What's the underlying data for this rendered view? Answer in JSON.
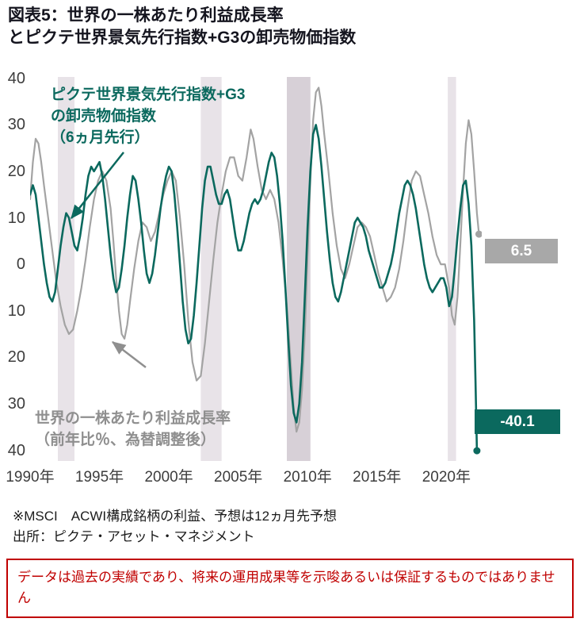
{
  "title": {
    "line1": "図表5：世界の一株あたり利益成長率",
    "line2": "とピクテ世界景気先行指数+G3の卸売物価指数"
  },
  "chart_data": {
    "type": "line",
    "x_range": [
      1990,
      2022.55
    ],
    "y_range": [
      -42.3,
      40.3
    ],
    "grid": false,
    "legend_position": "annotations-inside-plot",
    "x_ticks": [
      {
        "value": 1990,
        "label": "1990年"
      },
      {
        "value": 1995,
        "label": "1995年"
      },
      {
        "value": 2000,
        "label": "2000年"
      },
      {
        "value": 2005,
        "label": "2005年"
      },
      {
        "value": 2010,
        "label": "2010年"
      },
      {
        "value": 2015,
        "label": "2015年"
      },
      {
        "value": 2020,
        "label": "2020年"
      }
    ],
    "y_ticks": [
      {
        "value": 40,
        "label": "40"
      },
      {
        "value": 30,
        "label": "30"
      },
      {
        "value": 20,
        "label": "20"
      },
      {
        "value": 10,
        "label": "10"
      },
      {
        "value": 0,
        "label": "0"
      },
      {
        "value": -10,
        "label": "10"
      },
      {
        "value": -20,
        "label": "20"
      },
      {
        "value": -30,
        "label": "30"
      },
      {
        "value": -40,
        "label": "40"
      }
    ],
    "recession_bands": [
      {
        "from": 1992.0,
        "to": 1993.2,
        "shade": "normal"
      },
      {
        "from": 2002.3,
        "to": 2003.8,
        "shade": "normal"
      },
      {
        "from": 2008.5,
        "to": 2010.2,
        "shade": "dark"
      },
      {
        "from": 2020.1,
        "to": 2020.7,
        "shade": "normal"
      }
    ],
    "series": [
      {
        "name": "世界の一株あたり利益成長率（前年比％、為替調整後）",
        "color": "#a3a3a3",
        "width": 2.2,
        "last_value": 6.5,
        "last_label": "6.5",
        "points": [
          [
            1990.0,
            14
          ],
          [
            1990.2,
            22
          ],
          [
            1990.4,
            27
          ],
          [
            1990.6,
            26
          ],
          [
            1990.8,
            22
          ],
          [
            1991.0,
            17
          ],
          [
            1991.3,
            10
          ],
          [
            1991.6,
            3
          ],
          [
            1991.9,
            -4
          ],
          [
            1992.2,
            -9
          ],
          [
            1992.5,
            -13
          ],
          [
            1992.8,
            -15
          ],
          [
            1993.1,
            -14
          ],
          [
            1993.4,
            -10
          ],
          [
            1993.7,
            -5
          ],
          [
            1994.0,
            1
          ],
          [
            1994.3,
            8
          ],
          [
            1994.6,
            14
          ],
          [
            1994.9,
            18
          ],
          [
            1995.2,
            20
          ],
          [
            1995.5,
            18
          ],
          [
            1995.8,
            12
          ],
          [
            1996.0,
            5
          ],
          [
            1996.2,
            -3
          ],
          [
            1996.4,
            -10
          ],
          [
            1996.6,
            -15
          ],
          [
            1996.8,
            -16
          ],
          [
            1997.0,
            -13
          ],
          [
            1997.2,
            -8
          ],
          [
            1997.5,
            -1
          ],
          [
            1997.8,
            5
          ],
          [
            1998.1,
            9
          ],
          [
            1998.4,
            8
          ],
          [
            1998.7,
            5
          ],
          [
            1999.0,
            7
          ],
          [
            1999.3,
            11
          ],
          [
            1999.6,
            15
          ],
          [
            1999.9,
            18
          ],
          [
            2000.2,
            20
          ],
          [
            2000.5,
            18
          ],
          [
            2000.8,
            10
          ],
          [
            2001.1,
            0
          ],
          [
            2001.4,
            -12
          ],
          [
            2001.7,
            -21
          ],
          [
            2002.0,
            -25
          ],
          [
            2002.3,
            -24
          ],
          [
            2002.6,
            -17
          ],
          [
            2002.9,
            -8
          ],
          [
            2003.2,
            1
          ],
          [
            2003.5,
            9
          ],
          [
            2003.8,
            15
          ],
          [
            2004.1,
            20
          ],
          [
            2004.4,
            23
          ],
          [
            2004.7,
            23
          ],
          [
            2005.0,
            19
          ],
          [
            2005.3,
            18
          ],
          [
            2005.6,
            23
          ],
          [
            2005.9,
            29
          ],
          [
            2006.1,
            27
          ],
          [
            2006.4,
            21
          ],
          [
            2006.7,
            16
          ],
          [
            2007.0,
            14
          ],
          [
            2007.3,
            16
          ],
          [
            2007.6,
            14
          ],
          [
            2007.9,
            9
          ],
          [
            2008.2,
            1
          ],
          [
            2008.5,
            -9
          ],
          [
            2008.8,
            -22
          ],
          [
            2009.0,
            -31
          ],
          [
            2009.2,
            -36
          ],
          [
            2009.4,
            -34
          ],
          [
            2009.6,
            -27
          ],
          [
            2009.8,
            -15
          ],
          [
            2010.0,
            2
          ],
          [
            2010.2,
            18
          ],
          [
            2010.4,
            31
          ],
          [
            2010.6,
            37
          ],
          [
            2010.8,
            38
          ],
          [
            2011.0,
            34
          ],
          [
            2011.2,
            28
          ],
          [
            2011.5,
            20
          ],
          [
            2011.8,
            11
          ],
          [
            2012.1,
            4
          ],
          [
            2012.4,
            -1
          ],
          [
            2012.7,
            -3
          ],
          [
            2013.0,
            0
          ],
          [
            2013.3,
            4
          ],
          [
            2013.6,
            8
          ],
          [
            2013.9,
            9
          ],
          [
            2014.2,
            8
          ],
          [
            2014.5,
            6
          ],
          [
            2014.8,
            2
          ],
          [
            2015.1,
            -2
          ],
          [
            2015.4,
            -5
          ],
          [
            2015.7,
            -8
          ],
          [
            2016.0,
            -7
          ],
          [
            2016.3,
            -5
          ],
          [
            2016.6,
            -1
          ],
          [
            2016.9,
            5
          ],
          [
            2017.2,
            12
          ],
          [
            2017.5,
            18
          ],
          [
            2017.8,
            20
          ],
          [
            2018.1,
            19
          ],
          [
            2018.4,
            15
          ],
          [
            2018.7,
            11
          ],
          [
            2019.0,
            6
          ],
          [
            2019.3,
            2
          ],
          [
            2019.6,
            0
          ],
          [
            2019.9,
            0
          ],
          [
            2020.2,
            -5
          ],
          [
            2020.4,
            -11
          ],
          [
            2020.6,
            -13
          ],
          [
            2020.8,
            -7
          ],
          [
            2021.0,
            4
          ],
          [
            2021.2,
            16
          ],
          [
            2021.4,
            26
          ],
          [
            2021.6,
            31
          ],
          [
            2021.8,
            28
          ],
          [
            2022.0,
            20
          ],
          [
            2022.2,
            11
          ],
          [
            2022.35,
            6.5
          ]
        ]
      },
      {
        "name": "ピクテ世界景気先行指数+G3の卸売物価指数（6ヵ月先行）",
        "color": "#0b695e",
        "width": 2.6,
        "last_value": -40.1,
        "last_label": "-40.1",
        "points": [
          [
            1990.0,
            15
          ],
          [
            1990.2,
            17
          ],
          [
            1990.4,
            15
          ],
          [
            1990.6,
            10
          ],
          [
            1990.8,
            5
          ],
          [
            1991.0,
            0
          ],
          [
            1991.2,
            -4
          ],
          [
            1991.4,
            -7
          ],
          [
            1991.6,
            -8
          ],
          [
            1991.8,
            -6
          ],
          [
            1992.0,
            -1
          ],
          [
            1992.2,
            4
          ],
          [
            1992.4,
            8
          ],
          [
            1992.6,
            11
          ],
          [
            1992.8,
            10
          ],
          [
            1993.0,
            7
          ],
          [
            1993.2,
            4
          ],
          [
            1993.4,
            3
          ],
          [
            1993.6,
            6
          ],
          [
            1993.8,
            10
          ],
          [
            1994.0,
            15
          ],
          [
            1994.2,
            19
          ],
          [
            1994.4,
            21
          ],
          [
            1994.6,
            20
          ],
          [
            1994.8,
            21
          ],
          [
            1995.0,
            22
          ],
          [
            1995.2,
            19
          ],
          [
            1995.4,
            14
          ],
          [
            1995.6,
            8
          ],
          [
            1995.8,
            2
          ],
          [
            1996.0,
            -3
          ],
          [
            1996.2,
            -6
          ],
          [
            1996.4,
            -5
          ],
          [
            1996.6,
            -1
          ],
          [
            1996.8,
            4
          ],
          [
            1997.0,
            10
          ],
          [
            1997.2,
            15
          ],
          [
            1997.4,
            19
          ],
          [
            1997.6,
            18
          ],
          [
            1997.8,
            14
          ],
          [
            1998.0,
            9
          ],
          [
            1998.2,
            3
          ],
          [
            1998.4,
            -2
          ],
          [
            1998.6,
            -4
          ],
          [
            1998.8,
            -2
          ],
          [
            1999.0,
            2
          ],
          [
            1999.2,
            7
          ],
          [
            1999.4,
            12
          ],
          [
            1999.6,
            16
          ],
          [
            1999.8,
            19
          ],
          [
            2000.0,
            21
          ],
          [
            2000.2,
            20
          ],
          [
            2000.4,
            15
          ],
          [
            2000.6,
            8
          ],
          [
            2000.8,
            0
          ],
          [
            2001.0,
            -8
          ],
          [
            2001.2,
            -14
          ],
          [
            2001.4,
            -17
          ],
          [
            2001.6,
            -16
          ],
          [
            2001.8,
            -11
          ],
          [
            2002.0,
            -4
          ],
          [
            2002.2,
            4
          ],
          [
            2002.4,
            12
          ],
          [
            2002.6,
            18
          ],
          [
            2002.8,
            21
          ],
          [
            2003.0,
            21
          ],
          [
            2003.2,
            18
          ],
          [
            2003.4,
            15
          ],
          [
            2003.6,
            13
          ],
          [
            2003.8,
            13
          ],
          [
            2004.0,
            15
          ],
          [
            2004.2,
            16
          ],
          [
            2004.4,
            14
          ],
          [
            2004.6,
            10
          ],
          [
            2004.8,
            6
          ],
          [
            2005.0,
            3
          ],
          [
            2005.2,
            3
          ],
          [
            2005.4,
            5
          ],
          [
            2005.6,
            8
          ],
          [
            2005.8,
            11
          ],
          [
            2006.0,
            13
          ],
          [
            2006.2,
            14
          ],
          [
            2006.4,
            13
          ],
          [
            2006.6,
            14
          ],
          [
            2006.8,
            16
          ],
          [
            2007.0,
            19
          ],
          [
            2007.2,
            22
          ],
          [
            2007.4,
            24
          ],
          [
            2007.6,
            23
          ],
          [
            2007.8,
            19
          ],
          [
            2008.0,
            13
          ],
          [
            2008.2,
            5
          ],
          [
            2008.4,
            -5
          ],
          [
            2008.6,
            -16
          ],
          [
            2008.8,
            -26
          ],
          [
            2009.0,
            -32
          ],
          [
            2009.2,
            -34
          ],
          [
            2009.4,
            -30
          ],
          [
            2009.6,
            -21
          ],
          [
            2009.8,
            -7
          ],
          [
            2010.0,
            8
          ],
          [
            2010.2,
            20
          ],
          [
            2010.4,
            28
          ],
          [
            2010.6,
            30
          ],
          [
            2010.8,
            27
          ],
          [
            2011.0,
            21
          ],
          [
            2011.2,
            14
          ],
          [
            2011.4,
            7
          ],
          [
            2011.6,
            1
          ],
          [
            2011.8,
            -4
          ],
          [
            2012.0,
            -7
          ],
          [
            2012.2,
            -8
          ],
          [
            2012.4,
            -6
          ],
          [
            2012.6,
            -3
          ],
          [
            2012.8,
            0
          ],
          [
            2013.0,
            3
          ],
          [
            2013.2,
            6
          ],
          [
            2013.4,
            9
          ],
          [
            2013.6,
            10
          ],
          [
            2013.8,
            9
          ],
          [
            2014.0,
            8
          ],
          [
            2014.2,
            6
          ],
          [
            2014.4,
            3
          ],
          [
            2014.6,
            1
          ],
          [
            2014.8,
            -1
          ],
          [
            2015.0,
            -3
          ],
          [
            2015.2,
            -5
          ],
          [
            2015.4,
            -5
          ],
          [
            2015.6,
            -4
          ],
          [
            2015.8,
            -2
          ],
          [
            2016.0,
            0
          ],
          [
            2016.2,
            3
          ],
          [
            2016.4,
            7
          ],
          [
            2016.6,
            11
          ],
          [
            2016.8,
            14
          ],
          [
            2017.0,
            17
          ],
          [
            2017.2,
            18
          ],
          [
            2017.4,
            17
          ],
          [
            2017.6,
            15
          ],
          [
            2017.8,
            12
          ],
          [
            2018.0,
            8
          ],
          [
            2018.2,
            4
          ],
          [
            2018.4,
            0
          ],
          [
            2018.6,
            -3
          ],
          [
            2018.8,
            -5
          ],
          [
            2019.0,
            -6
          ],
          [
            2019.2,
            -5
          ],
          [
            2019.4,
            -4
          ],
          [
            2019.6,
            -3
          ],
          [
            2019.8,
            -3
          ],
          [
            2020.0,
            -5
          ],
          [
            2020.2,
            -9
          ],
          [
            2020.4,
            -7
          ],
          [
            2020.6,
            -1
          ],
          [
            2020.8,
            6
          ],
          [
            2021.0,
            12
          ],
          [
            2021.2,
            17
          ],
          [
            2021.4,
            18
          ],
          [
            2021.6,
            13
          ],
          [
            2021.8,
            4
          ],
          [
            2022.0,
            -12
          ],
          [
            2022.1,
            -25
          ],
          [
            2022.2,
            -40.1
          ]
        ]
      }
    ],
    "annotations": {
      "leading_index_label": [
        "ピクテ世界景気先行指数+G3",
        "の卸売物価指数",
        "（6ヵ月先行）"
      ],
      "eps_label": [
        "世界の一株あたり利益成長率",
        "（前年比％、為替調整後）"
      ]
    }
  },
  "footnotes": {
    "line1": "※MSCI　ACWI構成銘柄の利益、予想は12ヵ月先予想",
    "line2": "出所：ピクテ・アセット・マネジメント"
  },
  "disclaimer": {
    "text": "データは過去の実績であり、将来の運用成果等を示唆あるいは保証するものではありません"
  },
  "colors": {
    "teal": "#0b695e",
    "gray_line": "#a3a3a3",
    "band": "#e8e3e8",
    "band_dark": "#d7d0d7",
    "box_gray": "#a8a8a8",
    "red": "#c00000"
  }
}
